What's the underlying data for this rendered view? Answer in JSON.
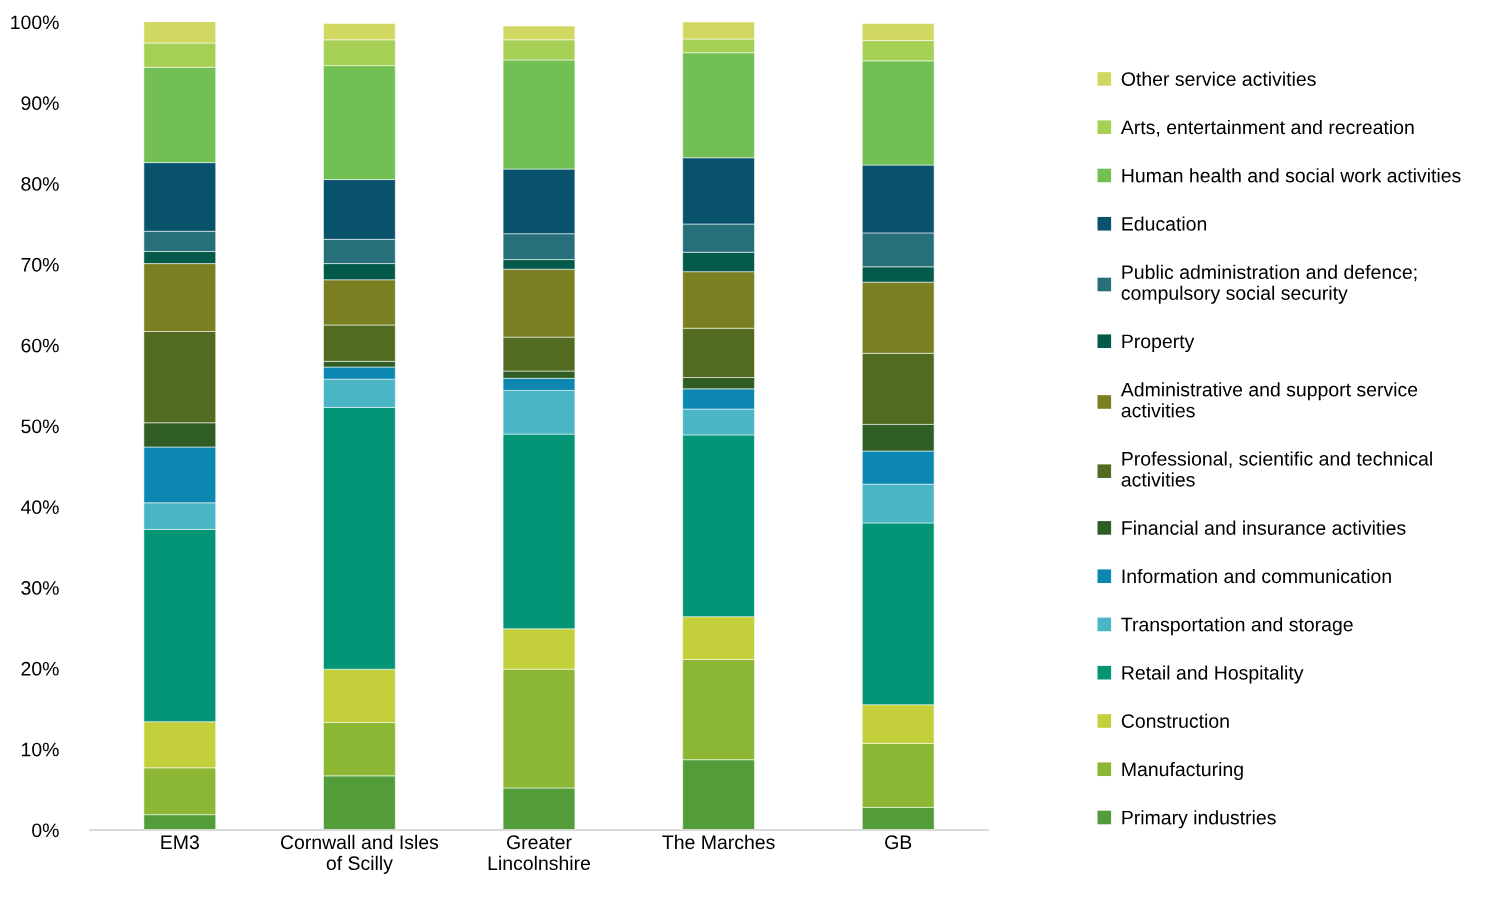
{
  "chart_data": {
    "type": "bar",
    "stacked": true,
    "legend": "right",
    "grid": false,
    "categories": [
      "EM3",
      "Cornwall and Isles\nof Scilly",
      "Greater\nLincolnshire",
      "The Marches",
      "GB"
    ],
    "ylim": [
      0,
      100
    ],
    "yticks": [
      {
        "value": 0,
        "label": "0%"
      },
      {
        "value": 10,
        "label": "10%"
      },
      {
        "value": 20,
        "label": "20%"
      },
      {
        "value": 30,
        "label": "30%"
      },
      {
        "value": 40,
        "label": "40%"
      },
      {
        "value": 50,
        "label": "50%"
      },
      {
        "value": 60,
        "label": "60%"
      },
      {
        "value": 70,
        "label": "70%"
      },
      {
        "value": 80,
        "label": "80%"
      },
      {
        "value": 90,
        "label": "90%"
      },
      {
        "value": 100,
        "label": "100%"
      }
    ],
    "series": [
      {
        "name": "Primary industries",
        "color": "#529d3a",
        "values": [
          1.9,
          6.7,
          5.2,
          8.7,
          2.8
        ]
      },
      {
        "name": "Manufacturing",
        "color": "#8bb735",
        "values": [
          5.8,
          6.6,
          14.7,
          12.4,
          7.9
        ]
      },
      {
        "name": "Construction",
        "color": "#c3cf3b",
        "values": [
          5.7,
          6.6,
          5.0,
          5.3,
          4.8
        ]
      },
      {
        "name": "Retail and Hospitality",
        "color": "#039575",
        "values": [
          23.8,
          32.4,
          24.1,
          22.5,
          22.5
        ]
      },
      {
        "name": "Transportation and storage",
        "color": "#4ab5c4",
        "values": [
          3.3,
          3.5,
          5.4,
          3.2,
          4.8
        ]
      },
      {
        "name": "Information and communication",
        "color": "#0b87b2",
        "values": [
          6.9,
          1.5,
          1.5,
          2.5,
          4.1
        ]
      },
      {
        "name": "Financial and insurance activities",
        "color": "#305d23",
        "values": [
          3.0,
          0.7,
          0.9,
          1.4,
          3.3
        ]
      },
      {
        "name": "Professional, scientific and technical\nactivities",
        "color": "#526b20",
        "values": [
          11.3,
          4.5,
          4.2,
          6.1,
          8.8
        ]
      },
      {
        "name": "Administrative and support service\nactivities",
        "color": "#7a7f22",
        "values": [
          8.4,
          5.6,
          8.4,
          7.0,
          8.8
        ]
      },
      {
        "name": "Property",
        "color": "#03594a",
        "values": [
          1.5,
          2.0,
          1.2,
          2.4,
          1.9
        ]
      },
      {
        "name": "Public administration and defence;\ncompulsory social security",
        "color": "#27707a",
        "values": [
          2.5,
          3.0,
          3.2,
          3.5,
          4.2
        ]
      },
      {
        "name": "Education",
        "color": "#08526b",
        "values": [
          8.5,
          7.4,
          8.0,
          8.2,
          8.4
        ]
      },
      {
        "name": "Human health and social work activities",
        "color": "#72bf54",
        "values": [
          11.8,
          14.1,
          13.5,
          13.0,
          12.9
        ]
      },
      {
        "name": "Arts, entertainment and recreation",
        "color": "#a6cf55",
        "values": [
          3.0,
          3.2,
          2.5,
          1.7,
          2.5
        ]
      },
      {
        "name": "Other service activities",
        "color": "#d0d862",
        "values": [
          2.7,
          2.0,
          1.7,
          2.1,
          2.1
        ]
      }
    ]
  }
}
